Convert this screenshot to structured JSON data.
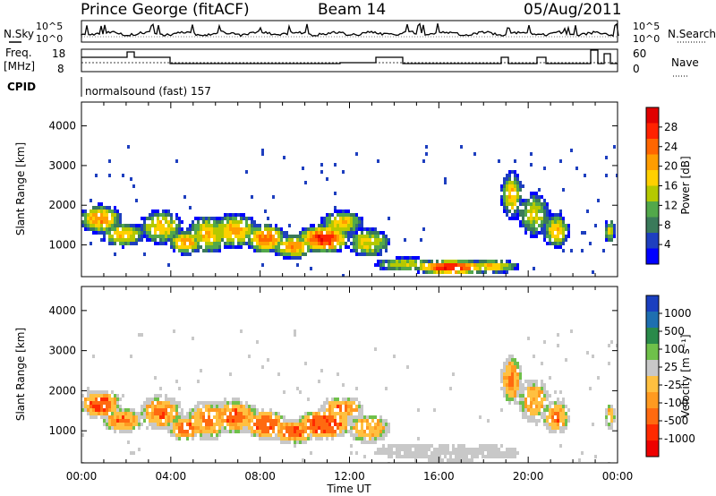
{
  "header": {
    "title": "Prince George (fitACF)",
    "beam": "Beam 14",
    "date": "05/Aug/2011"
  },
  "top_panels": {
    "nsky_label": "N.Sky",
    "nsearch_label": "N.Search",
    "noise_ticks": [
      "10^5",
      "10^0"
    ],
    "freq_label": "Freq.",
    "freq_unit": "[MHz]",
    "freq_ticks": [
      "18",
      "8"
    ],
    "nave_label": "Nave",
    "nave_ticks": [
      "60",
      "0"
    ],
    "cpid_label": "CPID",
    "cpid_value": "normalsound (fast) 157"
  },
  "colors": {
    "power_scale": [
      "#0000ff",
      "#1e3fbf",
      "#3a7a5a",
      "#52a84a",
      "#b5c900",
      "#ffd000",
      "#ff9d00",
      "#ff6600",
      "#ff2200",
      "#e00000"
    ],
    "velocity_scale": [
      "#1a3fbf",
      "#1e6fb0",
      "#2a8a4a",
      "#6fc04a",
      "#c8c8c8",
      "#ffc040",
      "#ff9a20",
      "#ff6a10",
      "#ff2a00",
      "#ee0000"
    ]
  },
  "chart_data": [
    {
      "type": "heatmap",
      "name": "power-panel",
      "xlabel": "Time UT",
      "ylabel": "Slant Range [km]",
      "x_ticks": [
        "00:00",
        "04:00",
        "08:00",
        "12:00",
        "16:00",
        "20:00",
        "00:00"
      ],
      "y_ticks": [
        1000,
        2000,
        3000,
        4000
      ],
      "xlim": [
        0,
        24
      ],
      "ylim": [
        200,
        4600
      ],
      "colorbar": {
        "label": "Power [dB]",
        "ticks": [
          4,
          8,
          12,
          16,
          20,
          24,
          28
        ]
      }
    },
    {
      "type": "heatmap",
      "name": "velocity-panel",
      "xlabel": "Time UT",
      "ylabel": "Slant Range [km]",
      "x_ticks": [
        "00:00",
        "04:00",
        "08:00",
        "12:00",
        "16:00",
        "20:00",
        "00:00"
      ],
      "y_ticks": [
        1000,
        2000,
        3000,
        4000
      ],
      "xlim": [
        0,
        24
      ],
      "ylim": [
        200,
        4600
      ],
      "colorbar": {
        "label": "Velocity [m s⁻¹]",
        "ticks": [
          1000,
          500,
          100,
          25,
          -25,
          -100,
          -500,
          -1000
        ]
      }
    }
  ]
}
